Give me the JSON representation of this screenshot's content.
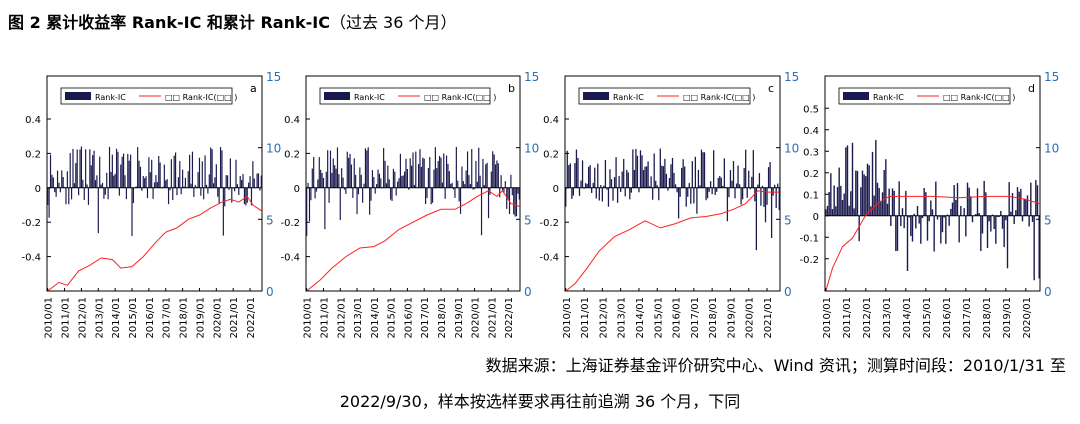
{
  "figure": {
    "title": "图 2 累计收益率 Rank-IC 和累计 Rank-IC",
    "title_suffix": "（过去 36 个月）"
  },
  "colors": {
    "bar": "#1a1a4e",
    "line": "#ff2020",
    "right_axis": "#2e6fb5",
    "axis": "#000000"
  },
  "legend": {
    "bar_label": "Rank-IC",
    "line_label": "累计 Rank-IC(右轴)",
    "line_label_render": "□□  Rank-IC(□□  )"
  },
  "source": {
    "line1": "数据来源：上海证券基金评价研究中心、Wind 资讯；测算时间段：2010/1/31 至",
    "line2": "2022/9/30，样本按选样要求再往前追溯 36 个月，下同"
  },
  "chart_data": [
    {
      "type": "bar+line",
      "panel": "a",
      "left_ylim": [
        -0.6,
        0.65
      ],
      "left_ticks": [
        -0.4,
        -0.2,
        0,
        0.2,
        0.4
      ],
      "right_ylim": [
        0,
        15
      ],
      "right_ticks": [
        0,
        5,
        10,
        15
      ],
      "xlabels": [
        "2010/01",
        "2011/01",
        "2012/01",
        "2013/01",
        "2014/01",
        "2015/01",
        "2016/01",
        "2017/01",
        "2018/01",
        "2019/01",
        "2020/01",
        "2021/01",
        "2022/01"
      ],
      "n_months": 153,
      "seed": 11,
      "bias": 0.07,
      "late_bias": 0.03,
      "late_start": 132,
      "cum_points": [
        [
          0,
          0
        ],
        [
          8,
          0.6
        ],
        [
          14,
          0.4
        ],
        [
          22,
          1.4
        ],
        [
          30,
          1.8
        ],
        [
          38,
          2.3
        ],
        [
          46,
          2.2
        ],
        [
          52,
          1.6
        ],
        [
          60,
          1.7
        ],
        [
          68,
          2.4
        ],
        [
          76,
          3.3
        ],
        [
          84,
          4.1
        ],
        [
          92,
          4.4
        ],
        [
          100,
          5.0
        ],
        [
          108,
          5.3
        ],
        [
          116,
          5.8
        ],
        [
          124,
          6.2
        ],
        [
          130,
          6.4
        ],
        [
          136,
          6.2
        ],
        [
          142,
          6.6
        ],
        [
          146,
          6.0
        ],
        [
          152,
          5.6
        ]
      ]
    },
    {
      "type": "bar+line",
      "panel": "b",
      "left_ylim": [
        -0.6,
        0.65
      ],
      "left_ticks": [
        -0.4,
        -0.2,
        0,
        0.2,
        0.4
      ],
      "right_ylim": [
        0,
        15
      ],
      "right_ticks": [
        0,
        5,
        10,
        15
      ],
      "xlabels": [
        "2010/01",
        "2011/01",
        "2012/01",
        "2013/01",
        "2014/01",
        "2015/01",
        "2016/01",
        "2017/01",
        "2018/01",
        "2019/01",
        "2020/01",
        "2021/01",
        "2022/01"
      ],
      "n_months": 153,
      "seed": 23,
      "bias": 0.07,
      "late_bias": 0.0,
      "late_start": 135,
      "cum_points": [
        [
          0,
          0
        ],
        [
          10,
          0.8
        ],
        [
          18,
          1.6
        ],
        [
          28,
          2.4
        ],
        [
          38,
          3.0
        ],
        [
          48,
          3.1
        ],
        [
          56,
          3.5
        ],
        [
          66,
          4.3
        ],
        [
          76,
          4.8
        ],
        [
          86,
          5.3
        ],
        [
          96,
          5.7
        ],
        [
          106,
          5.7
        ],
        [
          114,
          6.1
        ],
        [
          122,
          6.6
        ],
        [
          130,
          7.0
        ],
        [
          136,
          6.6
        ],
        [
          140,
          7.0
        ],
        [
          146,
          6.1
        ],
        [
          152,
          5.9
        ]
      ]
    },
    {
      "type": "bar+line",
      "panel": "c",
      "left_ylim": [
        -0.6,
        0.65
      ],
      "left_ticks": [
        -0.4,
        -0.2,
        0,
        0.2,
        0.4
      ],
      "right_ylim": [
        0,
        15
      ],
      "right_ticks": [
        0,
        5,
        10,
        15
      ],
      "xlabels": [
        "2010/01",
        "2011/01",
        "2012/01",
        "2013/01",
        "2014/01",
        "2015/01",
        "2016/01",
        "2017/01",
        "2018/01",
        "2019/01",
        "2020/01",
        "2021/01"
      ],
      "n_months": 141,
      "seed": 37,
      "bias": 0.06,
      "late_bias": -0.02,
      "late_start": 124,
      "cum_points": [
        [
          0,
          0
        ],
        [
          6,
          0.5
        ],
        [
          14,
          1.6
        ],
        [
          22,
          2.8
        ],
        [
          32,
          3.8
        ],
        [
          42,
          4.3
        ],
        [
          52,
          4.9
        ],
        [
          62,
          4.4
        ],
        [
          72,
          4.7
        ],
        [
          82,
          5.1
        ],
        [
          92,
          5.2
        ],
        [
          102,
          5.4
        ],
        [
          110,
          5.7
        ],
        [
          118,
          6.1
        ],
        [
          126,
          7.0
        ],
        [
          132,
          6.9
        ],
        [
          140,
          6.9
        ]
      ]
    },
    {
      "type": "bar+line",
      "panel": "d",
      "left_ylim": [
        -0.35,
        0.65
      ],
      "left_ticks": [
        -0.2,
        -0.1,
        0,
        0.1,
        0.2,
        0.3,
        0.4,
        0.5
      ],
      "right_ylim": [
        0,
        15
      ],
      "right_ticks": [
        0,
        5,
        10,
        15
      ],
      "xlabels": [
        "2010/01",
        "2011/01",
        "2012/01",
        "2013/01",
        "2014/01",
        "2015/01",
        "2016/01",
        "2017/01",
        "2018/01",
        "2019/01",
        "2020/01"
      ],
      "n_months": 129,
      "seed": 53,
      "bias": 0.2,
      "late_bias": 0.0,
      "late_start": 38,
      "cum_points": [
        [
          0,
          0
        ],
        [
          4,
          1.6
        ],
        [
          10,
          3.1
        ],
        [
          16,
          3.7
        ],
        [
          24,
          5.3
        ],
        [
          32,
          6.2
        ],
        [
          38,
          6.6
        ],
        [
          50,
          6.6
        ],
        [
          64,
          6.6
        ],
        [
          80,
          6.5
        ],
        [
          96,
          6.6
        ],
        [
          110,
          6.6
        ],
        [
          120,
          6.4
        ],
        [
          128,
          6.1
        ]
      ]
    }
  ]
}
